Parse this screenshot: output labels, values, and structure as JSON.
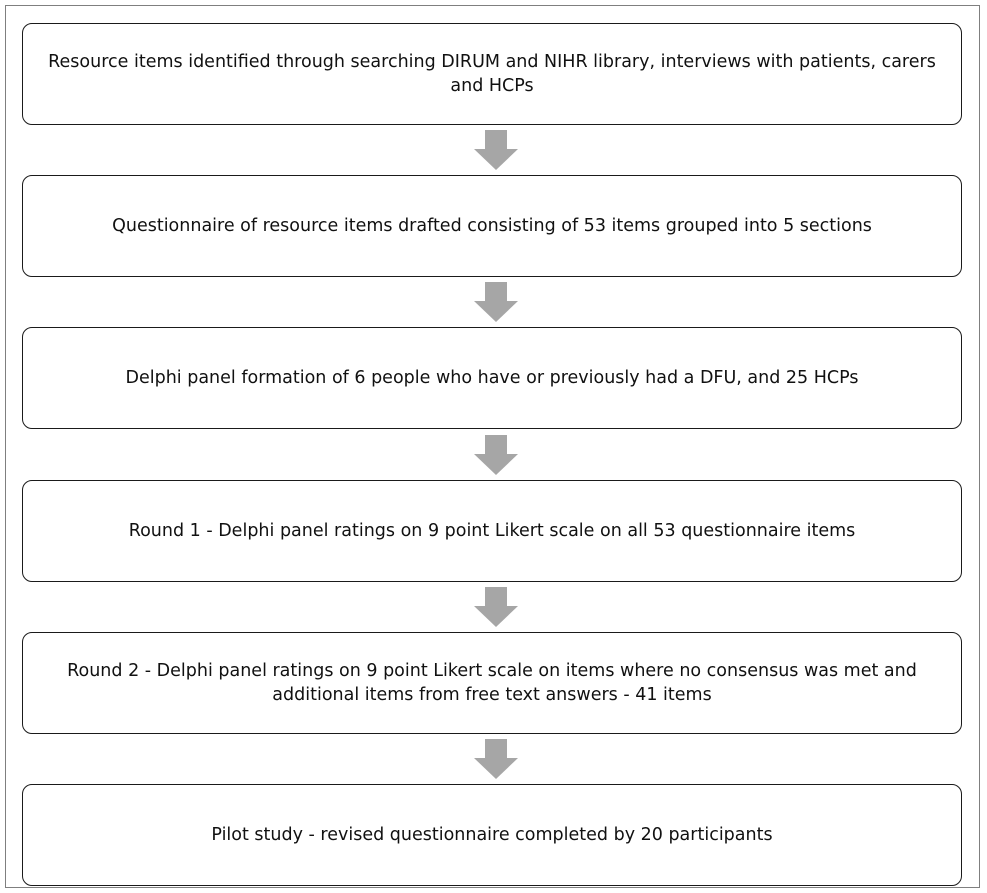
{
  "flowchart": {
    "steps": [
      {
        "text": "Resource items identified through searching DIRUM and NIHR library, interviews with patients, carers and HCPs"
      },
      {
        "text": "Questionnaire of resource items drafted consisting of 53 items grouped into 5 sections"
      },
      {
        "text": "Delphi panel formation of 6 people who have or previously had a DFU, and 25 HCPs"
      },
      {
        "text": "Round  1 - Delphi panel ratings on 9 point Likert scale on all 53 questionnaire items"
      },
      {
        "text": "Round 2 - Delphi panel ratings on 9 point Likert scale on items where no consensus was met and additional items from free text answers - 41 items"
      },
      {
        "text": "Pilot study - revised questionnaire completed by 20 participants"
      }
    ],
    "arrow_color": "#a6a6a6",
    "box_border_color": "#1a1a1a"
  }
}
